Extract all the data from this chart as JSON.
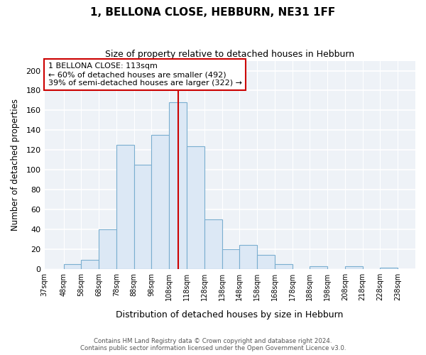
{
  "title": "1, BELLONA CLOSE, HEBBURN, NE31 1FF",
  "subtitle": "Size of property relative to detached houses in Hebburn",
  "xlabel": "Distribution of detached houses by size in Hebburn",
  "ylabel": "Number of detached properties",
  "bin_labels": [
    "37sqm",
    "48sqm",
    "58sqm",
    "68sqm",
    "78sqm",
    "88sqm",
    "98sqm",
    "108sqm",
    "118sqm",
    "128sqm",
    "138sqm",
    "148sqm",
    "158sqm",
    "168sqm",
    "178sqm",
    "188sqm",
    "198sqm",
    "208sqm",
    "218sqm",
    "228sqm",
    "238sqm"
  ],
  "bin_edges": [
    37,
    48,
    58,
    68,
    78,
    88,
    98,
    108,
    118,
    128,
    138,
    148,
    158,
    168,
    178,
    188,
    198,
    208,
    218,
    228,
    238
  ],
  "bin_values": [
    0,
    5,
    9,
    40,
    125,
    105,
    135,
    168,
    124,
    50,
    20,
    24,
    14,
    5,
    0,
    3,
    0,
    3,
    0,
    1
  ],
  "bar_fill_color": "#dce8f5",
  "bar_edge_color": "#7aaed0",
  "vline_color": "#cc0000",
  "vline_x": 113,
  "annotation_text": "1 BELLONA CLOSE: 113sqm\n← 60% of detached houses are smaller (492)\n39% of semi-detached houses are larger (322) →",
  "annotation_box_edgecolor": "#cc0000",
  "ylim": [
    0,
    210
  ],
  "yticks": [
    0,
    20,
    40,
    60,
    80,
    100,
    120,
    140,
    160,
    180,
    200
  ],
  "footer_line1": "Contains HM Land Registry data © Crown copyright and database right 2024.",
  "footer_line2": "Contains public sector information licensed under the Open Government Licence v3.0.",
  "bg_color": "#eef2f7",
  "grid_color": "#ffffff"
}
